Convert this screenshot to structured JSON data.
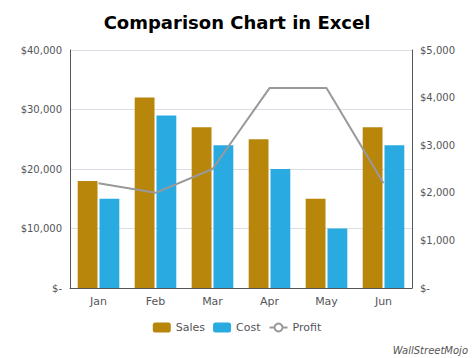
{
  "chart_data": {
    "type": "bar",
    "title": "Comparison Chart in Excel",
    "categories": [
      "Jan",
      "Feb",
      "Mar",
      "Apr",
      "May",
      "Jun"
    ],
    "series": [
      {
        "name": "Sales",
        "type": "bar",
        "color": "#b8860b",
        "values": [
          18000,
          32000,
          27000,
          25000,
          15000,
          27000
        ]
      },
      {
        "name": "Cost",
        "type": "bar",
        "color": "#29abe2",
        "values": [
          15000,
          29000,
          24000,
          20000,
          10000,
          24000
        ]
      },
      {
        "name": "Profit",
        "type": "line",
        "color": "#999999",
        "axis": "y2",
        "values": [
          2200,
          2000,
          2500,
          4200,
          4200,
          2200
        ]
      }
    ],
    "ylim": [
      0,
      40000
    ],
    "yticks": [
      {
        "value": 0,
        "label": "$-"
      },
      {
        "value": 10000,
        "label": "$10,000"
      },
      {
        "value": 20000,
        "label": "$20,000"
      },
      {
        "value": 30000,
        "label": "$30,000"
      },
      {
        "value": 40000,
        "label": "$40,000"
      }
    ],
    "y2lim": [
      0,
      5000
    ],
    "y2ticks": [
      {
        "value": 0,
        "label": "$-"
      },
      {
        "value": 1000,
        "label": "$1,000"
      },
      {
        "value": 2000,
        "label": "$2,000"
      },
      {
        "value": 3000,
        "label": "$3,000"
      },
      {
        "value": 4000,
        "label": "$4,000"
      },
      {
        "value": 5000,
        "label": "$5,000"
      }
    ],
    "grid": true,
    "legend": "bottom",
    "annotations": [
      "WallStreetMojo"
    ]
  }
}
